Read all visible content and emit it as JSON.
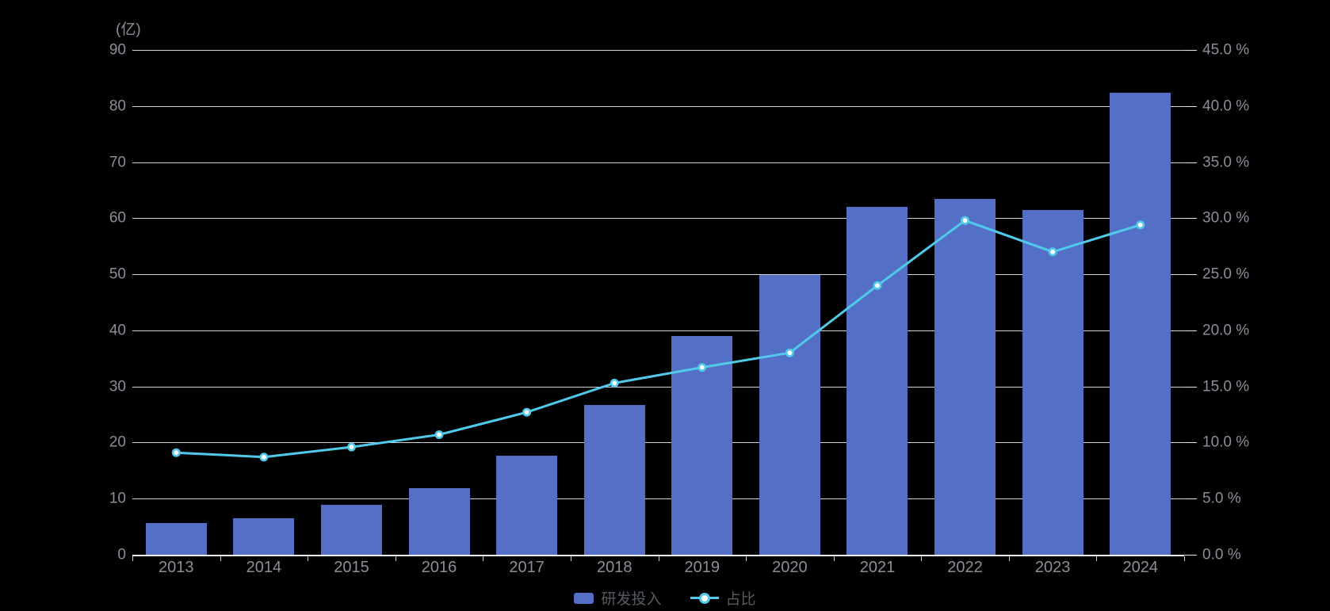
{
  "background_color": "#000000",
  "colors": {
    "bar": "#5470C6",
    "line": "#50C9EA",
    "line_symbol_fill": "#FFFFFF",
    "gridline": "#E0E6F1",
    "axis_text": "#8A8E98",
    "legend_text": "#565B64"
  },
  "legend": [
    {
      "label": "研发投入",
      "marker": "bar-swatch",
      "color": "#5470C6"
    },
    {
      "label": "占比",
      "marker": "line-dot",
      "color": "#50C9EA"
    }
  ],
  "chart_data": {
    "type": "bar",
    "subtype": "bar-line-combo-dual-axis",
    "categories": [
      "2013",
      "2014",
      "2015",
      "2016",
      "2017",
      "2018",
      "2019",
      "2020",
      "2021",
      "2022",
      "2023",
      "2024"
    ],
    "series": [
      {
        "name": "研发投入",
        "type": "bar",
        "axis": "left",
        "unit": "亿",
        "color": "#5470C6",
        "values": [
          5.6,
          6.5,
          8.9,
          11.8,
          17.6,
          26.7,
          39.0,
          49.9,
          62.0,
          63.5,
          61.5,
          82.3
        ]
      },
      {
        "name": "占比",
        "type": "line",
        "axis": "right",
        "unit": "%",
        "color": "#50C9EA",
        "values": [
          9.1,
          8.7,
          9.6,
          10.7,
          12.7,
          15.3,
          16.7,
          18.0,
          24.0,
          29.8,
          27.0,
          29.4
        ]
      }
    ],
    "left_axis": {
      "unit_label": "(亿)",
      "min": 0,
      "max": 90,
      "tick_step": 10,
      "tick_labels": [
        "0",
        "10",
        "20",
        "30",
        "40",
        "50",
        "60",
        "70",
        "80",
        "90"
      ]
    },
    "right_axis": {
      "min": 0,
      "max": 45,
      "tick_step": 5,
      "tick_labels": [
        "0.0 %",
        "5.0 %",
        "10.0 %",
        "15.0 %",
        "20.0 %",
        "25.0 %",
        "30.0 %",
        "35.0 %",
        "40.0 %",
        "45.0 %"
      ]
    },
    "grid": true,
    "legend_position": "bottom-center",
    "title": ""
  }
}
